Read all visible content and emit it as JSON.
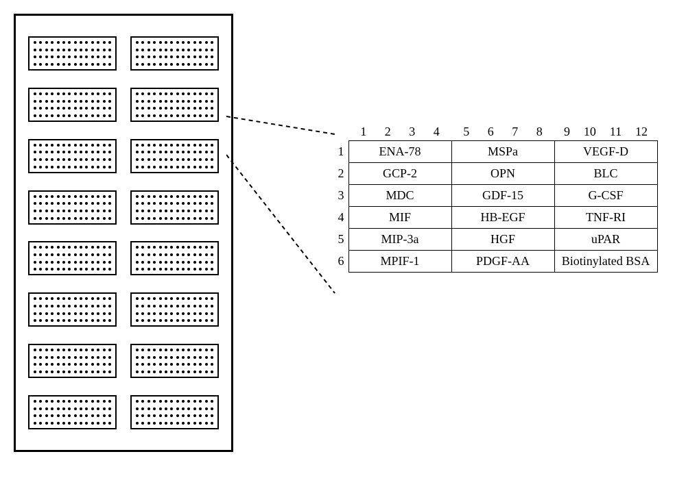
{
  "plate": {
    "rows": 8,
    "cols": 2,
    "well_dot_rows": 4,
    "well_dot_cols": 14,
    "callout_well_row": 3,
    "callout_well_col": 2,
    "border_color": "#000000",
    "dot_color": "#000000",
    "background_color": "#ffffff"
  },
  "callout": {
    "line_color": "#000000",
    "line_dash": "6,5",
    "line_width": 2,
    "x1a": 0,
    "y1a": 10,
    "x2a": 158,
    "y2a": 36,
    "x1b": 0,
    "y1b": 66,
    "x2b": 158,
    "y2b": 268
  },
  "table": {
    "border_color": "#000000",
    "background_color": "#ffffff",
    "font_family": "Times New Roman",
    "title_fontsize": 18,
    "cell_fontsize": 18,
    "col_headers_groups": [
      [
        "1",
        "2",
        "3",
        "4"
      ],
      [
        "5",
        "6",
        "7",
        "8"
      ],
      [
        "9",
        "10",
        "11",
        "12"
      ]
    ],
    "row_labels": [
      "1",
      "2",
      "3",
      "4",
      "5",
      "6"
    ],
    "rows": [
      [
        "ENA-78",
        "MSPa",
        "VEGF-D"
      ],
      [
        "GCP-2",
        "OPN",
        "BLC"
      ],
      [
        "MDC",
        "GDF-15",
        "G-CSF"
      ],
      [
        "MIF",
        "HB-EGF",
        "TNF-RI"
      ],
      [
        "MIP-3a",
        "HGF",
        "uPAR"
      ],
      [
        "MPIF-1",
        "PDGF-AA",
        "Biotinylated BSA"
      ]
    ]
  }
}
